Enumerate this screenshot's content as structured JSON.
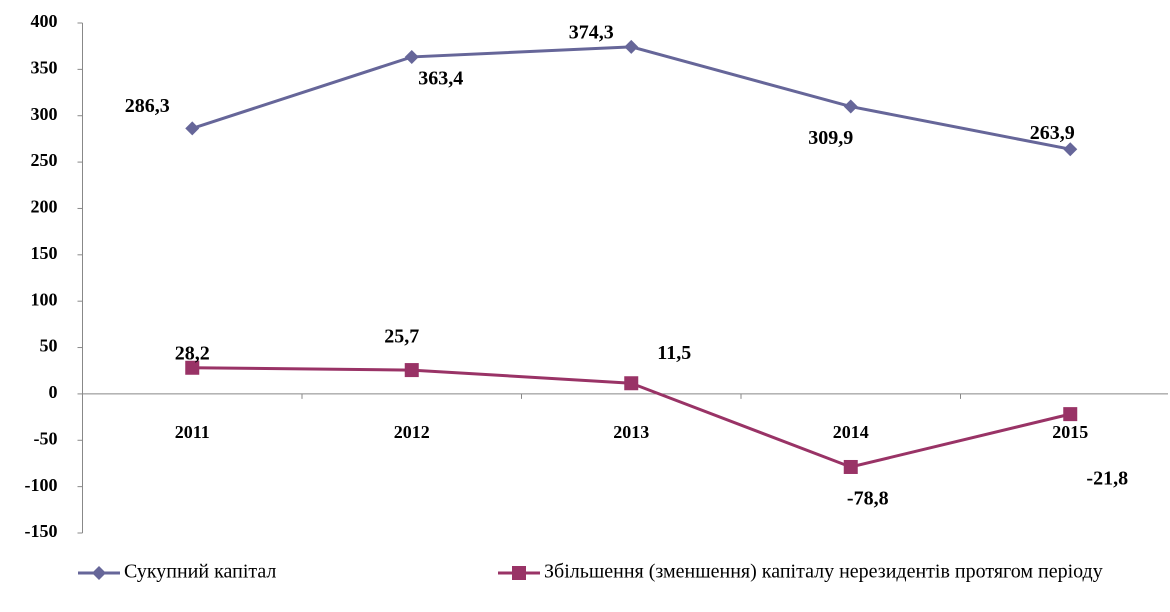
{
  "chart_data": {
    "type": "line",
    "categories": [
      "2011",
      "2012",
      "2013",
      "2014",
      "2015"
    ],
    "series": [
      {
        "name": "Сукупний капітал",
        "color": "#666699",
        "marker": "diamond",
        "values": [
          286.3,
          363.4,
          374.3,
          309.9,
          263.9
        ],
        "value_labels": [
          "286,3",
          "363,4",
          "374,3",
          "309,9",
          "263,9"
        ]
      },
      {
        "name": "Збільшення (зменшення) капіталу нерезидентів протягом періоду",
        "color": "#993366",
        "marker": "square",
        "values": [
          28.2,
          25.7,
          11.5,
          -78.8,
          -21.8
        ],
        "value_labels": [
          "28,2",
          "25,7",
          "11,5",
          "-78,8",
          "-21,8"
        ]
      }
    ],
    "ylim": [
      -150,
      400
    ],
    "yticks": [
      -150,
      -100,
      -50,
      0,
      50,
      100,
      150,
      200,
      250,
      300,
      350,
      400
    ],
    "legend": "bottom"
  }
}
